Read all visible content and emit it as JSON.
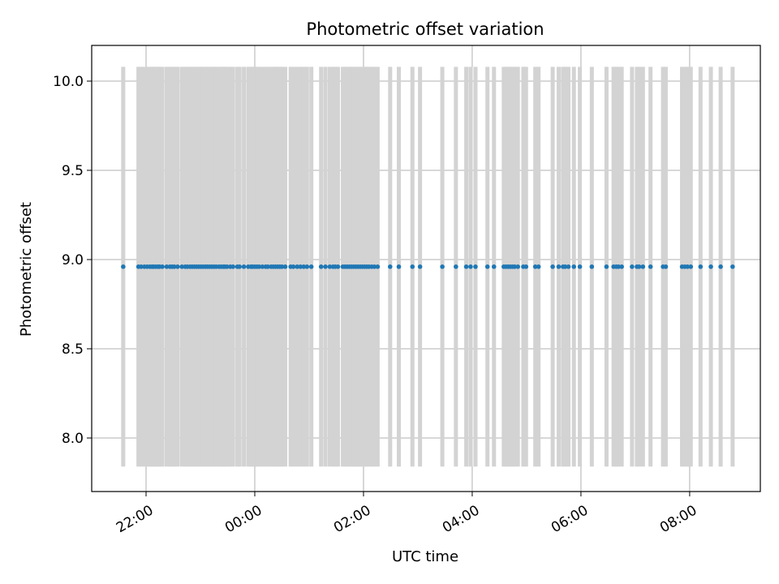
{
  "chart_data": {
    "type": "scatter",
    "title": "Photometric offset variation",
    "xlabel": "UTC time",
    "ylabel": "Photometric offset",
    "grid": true,
    "x_unit": "hours relative to 00:00 UTC",
    "xlim": [
      -3.0,
      9.3
    ],
    "ylim": [
      7.7,
      10.2
    ],
    "x_ticks": [
      {
        "value": -2,
        "label": "22:00"
      },
      {
        "value": 0,
        "label": "00:00"
      },
      {
        "value": 2,
        "label": "02:00"
      },
      {
        "value": 4,
        "label": "04:00"
      },
      {
        "value": 6,
        "label": "06:00"
      },
      {
        "value": 8,
        "label": "08:00"
      }
    ],
    "y_ticks": [
      {
        "value": 8.0,
        "label": "8.0"
      },
      {
        "value": 8.5,
        "label": "8.5"
      },
      {
        "value": 9.0,
        "label": "9.0"
      },
      {
        "value": 9.5,
        "label": "9.5"
      },
      {
        "value": 10.0,
        "label": "10.0"
      }
    ],
    "marker_color": "#1f77b4",
    "errorbar_color": "#d3d3d3",
    "error_range": [
      7.84,
      10.08
    ],
    "y_value": 8.96,
    "x": [
      -2.42,
      -2.14,
      -2.09,
      -2.03,
      -1.98,
      -1.93,
      -1.89,
      -1.86,
      -1.82,
      -1.78,
      -1.75,
      -1.7,
      -1.62,
      -1.56,
      -1.52,
      -1.48,
      -1.42,
      -1.34,
      -1.28,
      -1.24,
      -1.19,
      -1.15,
      -1.11,
      -1.07,
      -1.03,
      -0.99,
      -0.95,
      -0.91,
      -0.87,
      -0.83,
      -0.79,
      -0.75,
      -0.71,
      -0.66,
      -0.62,
      -0.58,
      -0.55,
      -0.51,
      -0.45,
      -0.4,
      -0.32,
      -0.28,
      -0.2,
      -0.12,
      -0.07,
      -0.04,
      0.0,
      0.04,
      0.08,
      0.14,
      0.2,
      0.24,
      0.3,
      0.34,
      0.38,
      0.42,
      0.46,
      0.5,
      0.56,
      0.66,
      0.71,
      0.78,
      0.84,
      0.9,
      0.96,
      1.04,
      1.22,
      1.3,
      1.38,
      1.44,
      1.48,
      1.53,
      1.62,
      1.66,
      1.7,
      1.74,
      1.78,
      1.82,
      1.86,
      1.9,
      1.94,
      1.98,
      2.02,
      2.06,
      2.1,
      2.15,
      2.2,
      2.26,
      2.49,
      2.65,
      2.9,
      3.04,
      3.45,
      3.7,
      3.89,
      3.97,
      4.06,
      4.28,
      4.4,
      4.58,
      4.62,
      4.66,
      4.7,
      4.74,
      4.78,
      4.84,
      4.94,
      4.99,
      5.16,
      5.22,
      5.48,
      5.59,
      5.67,
      5.71,
      5.77,
      5.87,
      5.98,
      6.2,
      6.47,
      6.6,
      6.65,
      6.69,
      6.75,
      6.94,
      7.03,
      7.07,
      7.14,
      7.28,
      7.51,
      7.56,
      7.86,
      7.91,
      7.96,
      8.02,
      8.2,
      8.39,
      8.57,
      8.79
    ]
  }
}
